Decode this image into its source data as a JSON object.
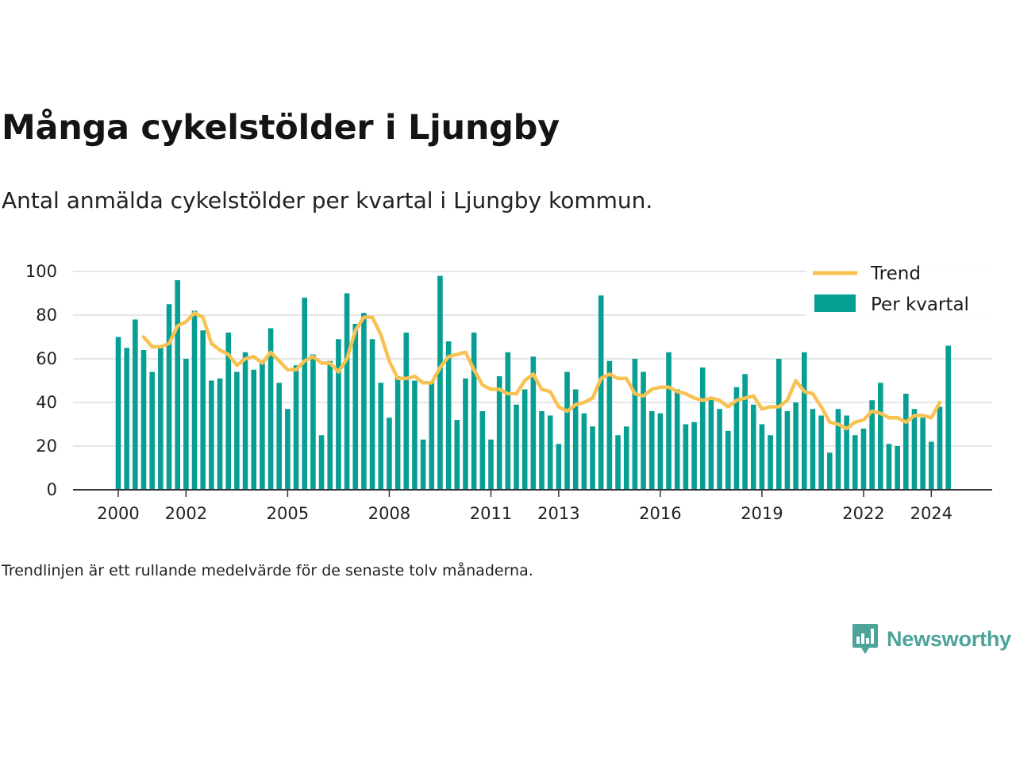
{
  "title": "Många cykelstölder i Ljungby",
  "subtitle": "Antal anmälda cykelstölder per kvartal i Ljungby kommun.",
  "note": "Trendlinjen är ett rullande medelvärde för de senaste tolv månaderna.",
  "brand": {
    "name": "Newsworthy",
    "logo_icon": "bar-chart-speech-bubble-icon"
  },
  "chart_data": {
    "type": "bar",
    "title": "Många cykelstölder i Ljungby",
    "xlabel": "",
    "ylabel": "",
    "ylim": [
      0,
      100
    ],
    "yticks": [
      0,
      20,
      40,
      60,
      80,
      100
    ],
    "xticks": [
      "2000",
      "2002",
      "2005",
      "2008",
      "2011",
      "2013",
      "2016",
      "2019",
      "2022",
      "2024"
    ],
    "grid": true,
    "legend": {
      "placement": "top-right",
      "entries": [
        "Trend",
        "Per kvartal"
      ]
    },
    "colors": {
      "bars": "#079e93",
      "trend": "#f8c253",
      "grid": "#dddddd",
      "axis": "#333333"
    },
    "categories": [
      "2000 Q1",
      "2000 Q2",
      "2000 Q3",
      "2000 Q4",
      "2001 Q1",
      "2001 Q2",
      "2001 Q3",
      "2001 Q4",
      "2002 Q1",
      "2002 Q2",
      "2002 Q3",
      "2002 Q4",
      "2003 Q1",
      "2003 Q2",
      "2003 Q3",
      "2003 Q4",
      "2004 Q1",
      "2004 Q2",
      "2004 Q3",
      "2004 Q4",
      "2005 Q1",
      "2005 Q2",
      "2005 Q3",
      "2005 Q4",
      "2006 Q1",
      "2006 Q2",
      "2006 Q3",
      "2006 Q4",
      "2007 Q1",
      "2007 Q2",
      "2007 Q3",
      "2007 Q4",
      "2008 Q1",
      "2008 Q2",
      "2008 Q3",
      "2008 Q4",
      "2009 Q1",
      "2009 Q2",
      "2009 Q3",
      "2009 Q4",
      "2010 Q1",
      "2010 Q2",
      "2010 Q3",
      "2010 Q4",
      "2011 Q1",
      "2011 Q2",
      "2011 Q3",
      "2011 Q4",
      "2012 Q1",
      "2012 Q2",
      "2012 Q3",
      "2012 Q4",
      "2013 Q1",
      "2013 Q2",
      "2013 Q3",
      "2013 Q4",
      "2014 Q1",
      "2014 Q2",
      "2014 Q3",
      "2014 Q4",
      "2015 Q1",
      "2015 Q2",
      "2015 Q3",
      "2015 Q4",
      "2016 Q1",
      "2016 Q2",
      "2016 Q3",
      "2016 Q4",
      "2017 Q1",
      "2017 Q2",
      "2017 Q3",
      "2017 Q4",
      "2018 Q1",
      "2018 Q2",
      "2018 Q3",
      "2018 Q4",
      "2019 Q1",
      "2019 Q2",
      "2019 Q3",
      "2019 Q4",
      "2020 Q1",
      "2020 Q2",
      "2020 Q3",
      "2020 Q4",
      "2021 Q1",
      "2021 Q2",
      "2021 Q3",
      "2021 Q4",
      "2022 Q1",
      "2022 Q2",
      "2022 Q3",
      "2022 Q4",
      "2023 Q1",
      "2023 Q2",
      "2023 Q3",
      "2023 Q4",
      "2024 Q1",
      "2024 Q2",
      "2024 Q3",
      "2024 Q4"
    ],
    "series": [
      {
        "name": "Per kvartal",
        "type": "bar",
        "values": [
          70,
          65,
          78,
          64,
          54,
          65,
          85,
          96,
          60,
          82,
          73,
          50,
          51,
          72,
          54,
          63,
          55,
          59,
          74,
          49,
          37,
          57,
          88,
          62,
          25,
          59,
          69,
          90,
          76,
          81,
          69,
          49,
          33,
          52,
          72,
          50,
          23,
          49,
          98,
          68,
          32,
          51,
          72,
          36,
          23,
          52,
          63,
          39,
          46,
          61,
          36,
          34,
          21,
          54,
          46,
          35,
          29,
          89,
          59,
          25,
          29,
          60,
          54,
          36,
          35,
          63,
          46,
          30,
          31,
          56,
          42,
          37,
          27,
          47,
          53,
          39,
          30,
          25,
          60,
          36,
          40,
          63,
          37,
          34,
          17,
          37,
          34,
          25,
          28,
          41,
          49,
          21,
          20,
          44,
          37,
          33,
          22,
          38,
          66,
          0
        ]
      },
      {
        "name": "Trend",
        "type": "line",
        "values": [
          null,
          null,
          null,
          70,
          65.5,
          65.5,
          67,
          75,
          77,
          81,
          79,
          67,
          64,
          62,
          57,
          60,
          61,
          58,
          63,
          59,
          55,
          55,
          59,
          61,
          58,
          58,
          54,
          60,
          73,
          79,
          79,
          71,
          59,
          51,
          51,
          52,
          49,
          49,
          56,
          61,
          62,
          63,
          55,
          48,
          46,
          46,
          44,
          44,
          50,
          53,
          46,
          45,
          38,
          36,
          39,
          40,
          42,
          51,
          53,
          51,
          51,
          44,
          43,
          46,
          47,
          47,
          45,
          44,
          42,
          41,
          42,
          41,
          38,
          41,
          42,
          43,
          37,
          38,
          38,
          41,
          50,
          45,
          44,
          38,
          31,
          30,
          28,
          31,
          32,
          36,
          35,
          33,
          33,
          31,
          34,
          34,
          33,
          40,
          null,
          null
        ]
      }
    ]
  }
}
